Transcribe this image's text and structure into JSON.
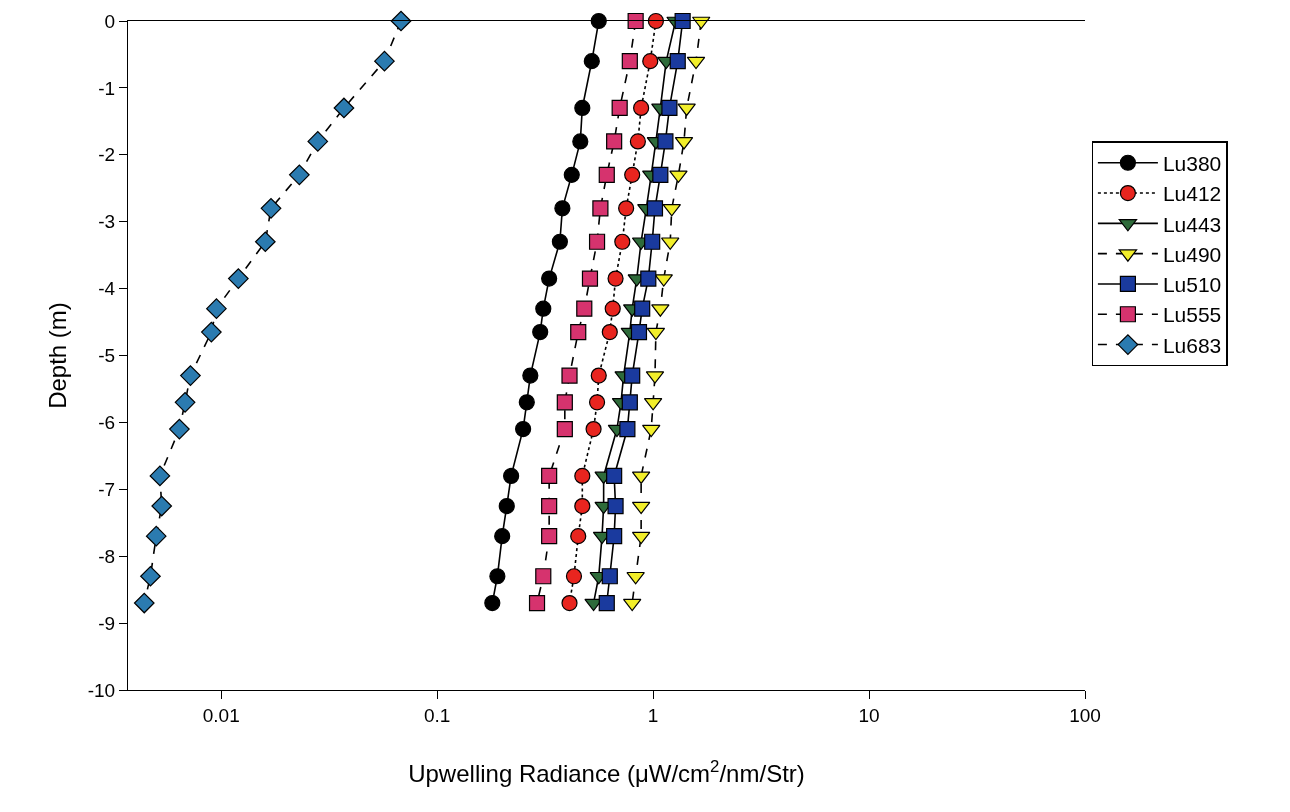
{
  "chart_data": {
    "type": "line",
    "xlabel": "Upwelling Radiance (μW/cm$^{2}$/nm/Str)",
    "ylabel": "Depth (m)",
    "log": "x",
    "xlim": [
      0.0037,
      100
    ],
    "xticks": [
      0.01,
      0.1,
      1,
      10,
      100
    ],
    "ylim": [
      -10,
      0
    ],
    "yticks": [
      -10,
      -9,
      -8,
      -7,
      -6,
      -5,
      -4,
      -3,
      -2,
      -1,
      0
    ],
    "grid": false,
    "legend": "right",
    "series": [
      {
        "name": "Lu380",
        "color": "#000000",
        "marker": "circle",
        "line_style": "solid",
        "x": [
          0.56,
          0.52,
          0.47,
          0.46,
          0.42,
          0.38,
          0.37,
          0.33,
          0.31,
          0.3,
          0.27,
          0.26,
          0.25,
          0.22,
          0.21,
          0.2,
          0.19,
          0.18
        ],
        "values": [
          0,
          -0.6,
          -1.3,
          -1.8,
          -2.3,
          -2.8,
          -3.3,
          -3.85,
          -4.3,
          -4.65,
          -5.3,
          -5.7,
          -6.1,
          -6.8,
          -7.25,
          -7.7,
          -8.3,
          -8.7
        ]
      },
      {
        "name": "Lu412",
        "color": "#e8251f",
        "marker": "circle",
        "line_style": "dotted",
        "x": [
          1.03,
          0.97,
          0.88,
          0.85,
          0.8,
          0.75,
          0.72,
          0.67,
          0.65,
          0.63,
          0.56,
          0.55,
          0.53,
          0.47,
          0.47,
          0.45,
          0.43,
          0.41
        ],
        "values": [
          0,
          -0.6,
          -1.3,
          -1.8,
          -2.3,
          -2.8,
          -3.3,
          -3.85,
          -4.3,
          -4.65,
          -5.3,
          -5.7,
          -6.1,
          -6.8,
          -7.25,
          -7.7,
          -8.3,
          -8.7
        ]
      },
      {
        "name": "Lu443",
        "color": "#2e6b3a",
        "marker": "triangle",
        "line_style": "solid",
        "x": [
          1.27,
          1.15,
          1.08,
          1.03,
          0.98,
          0.93,
          0.88,
          0.84,
          0.8,
          0.78,
          0.73,
          0.71,
          0.68,
          0.59,
          0.59,
          0.58,
          0.56,
          0.53
        ],
        "values": [
          0,
          -0.6,
          -1.3,
          -1.8,
          -2.3,
          -2.8,
          -3.3,
          -3.85,
          -4.3,
          -4.65,
          -5.3,
          -5.7,
          -6.1,
          -6.8,
          -7.25,
          -7.7,
          -8.3,
          -8.7
        ]
      },
      {
        "name": "Lu490",
        "color": "#f2ee2a",
        "marker": "triangle",
        "line_style": "dashed",
        "x": [
          1.67,
          1.58,
          1.43,
          1.39,
          1.31,
          1.22,
          1.2,
          1.12,
          1.08,
          1.03,
          1.02,
          1.0,
          0.98,
          0.88,
          0.88,
          0.88,
          0.83,
          0.8
        ],
        "values": [
          0,
          -0.6,
          -1.3,
          -1.8,
          -2.3,
          -2.8,
          -3.3,
          -3.85,
          -4.3,
          -4.65,
          -5.3,
          -5.7,
          -6.1,
          -6.8,
          -7.25,
          -7.7,
          -8.3,
          -8.7
        ]
      },
      {
        "name": "Lu510",
        "color": "#1a3a9e",
        "marker": "square",
        "line_style": "solid",
        "x": [
          1.37,
          1.3,
          1.19,
          1.14,
          1.08,
          1.02,
          0.99,
          0.95,
          0.89,
          0.86,
          0.8,
          0.78,
          0.76,
          0.66,
          0.67,
          0.66,
          0.63,
          0.61
        ],
        "values": [
          0,
          -0.6,
          -1.3,
          -1.8,
          -2.3,
          -2.8,
          -3.3,
          -3.85,
          -4.3,
          -4.65,
          -5.3,
          -5.7,
          -6.1,
          -6.8,
          -7.25,
          -7.7,
          -8.3,
          -8.7
        ]
      },
      {
        "name": "Lu555",
        "color": "#d6336e",
        "marker": "square",
        "line_style": "dashed",
        "x": [
          0.83,
          0.78,
          0.7,
          0.66,
          0.61,
          0.57,
          0.55,
          0.51,
          0.48,
          0.45,
          0.41,
          0.39,
          0.39,
          0.33,
          0.33,
          0.33,
          0.31,
          0.29
        ],
        "values": [
          0,
          -0.6,
          -1.3,
          -1.8,
          -2.3,
          -2.8,
          -3.3,
          -3.85,
          -4.3,
          -4.65,
          -5.3,
          -5.7,
          -6.1,
          -6.8,
          -7.25,
          -7.7,
          -8.3,
          -8.7
        ]
      },
      {
        "name": "Lu683",
        "color": "#2b7bb0",
        "marker": "diamond",
        "line_style": "dashed",
        "x": [
          0.068,
          0.057,
          0.037,
          0.028,
          0.023,
          0.017,
          0.016,
          0.012,
          0.0095,
          0.009,
          0.0072,
          0.0068,
          0.0064,
          0.0052,
          0.0053,
          0.005,
          0.0047,
          0.0044
        ],
        "values": [
          0,
          -0.6,
          -1.3,
          -1.8,
          -2.3,
          -2.8,
          -3.3,
          -3.85,
          -4.3,
          -4.65,
          -5.3,
          -5.7,
          -6.1,
          -6.8,
          -7.25,
          -7.7,
          -8.3,
          -8.7
        ]
      }
    ]
  }
}
